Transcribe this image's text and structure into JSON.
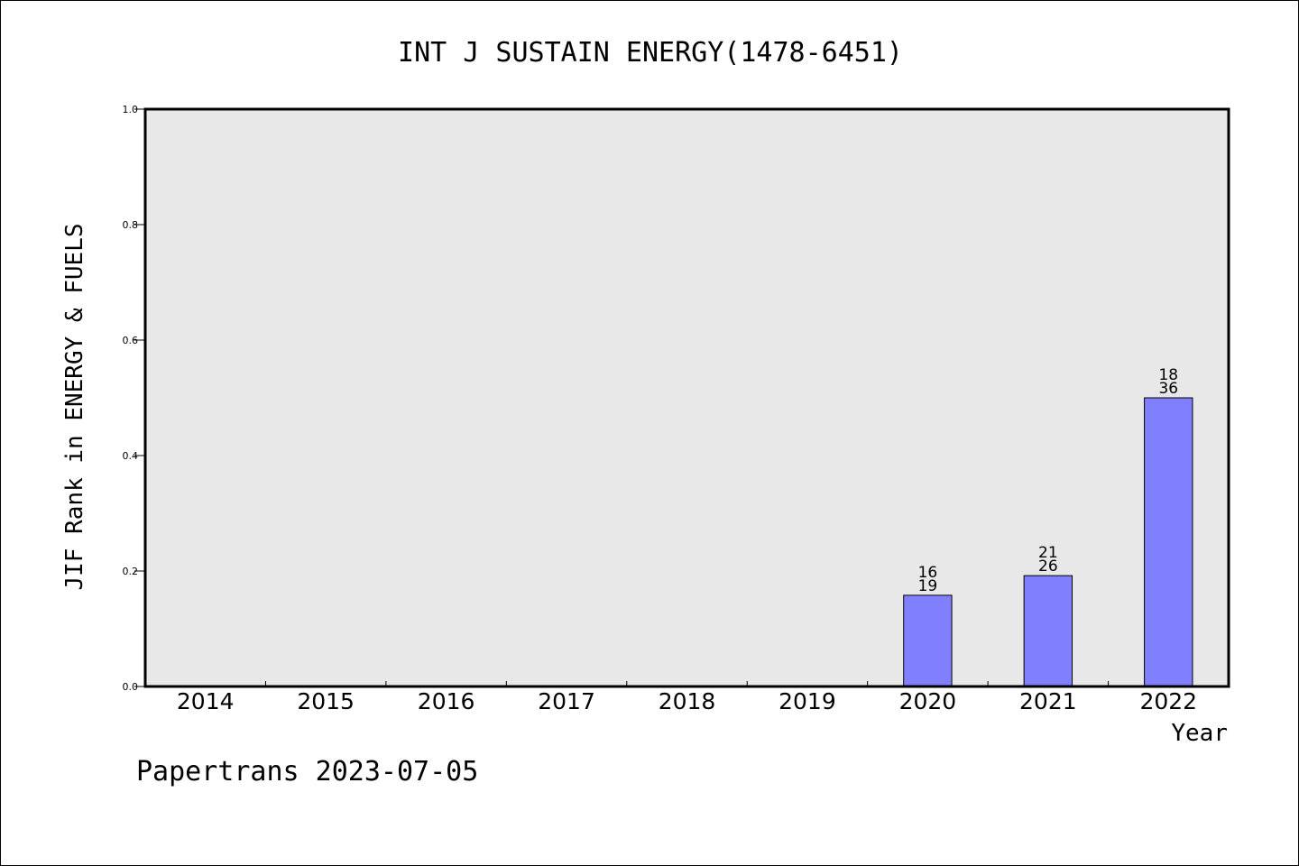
{
  "chart_data": {
    "type": "bar",
    "title": "INT J SUSTAIN ENERGY(1478-6451)",
    "xlabel": "Year",
    "ylabel": "JIF Rank in ENERGY & FUELS",
    "ylim": [
      0,
      1.0
    ],
    "yticks": [
      "0.0",
      "0.2",
      "0.4",
      "0.6",
      "0.8",
      "1.0"
    ],
    "categories": [
      "2014",
      "2015",
      "2016",
      "2017",
      "2018",
      "2019",
      "2020",
      "2021",
      "2022"
    ],
    "values": [
      null,
      null,
      null,
      null,
      null,
      null,
      0.158,
      0.192,
      0.5
    ],
    "bar_labels": [
      null,
      null,
      null,
      null,
      null,
      null,
      {
        "top": "16",
        "bottom": "19"
      },
      {
        "top": "21",
        "bottom": "26"
      },
      {
        "top": "18",
        "bottom": "36"
      }
    ],
    "grid": false,
    "colors": {
      "plot_background": "#e8e8e8",
      "bar_fill": "#8080ff",
      "bar_stroke": "#000000"
    }
  },
  "footer": {
    "text": "Papertrans 2023-07-05"
  }
}
